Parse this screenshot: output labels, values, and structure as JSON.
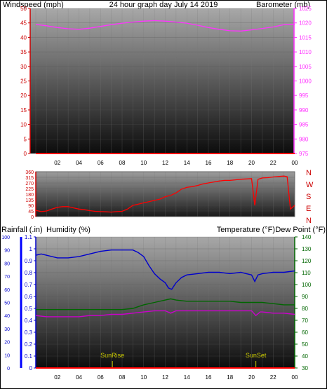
{
  "page": {
    "title": "24 hour graph day   July 14 2019",
    "colors": {
      "wind_axis": "#cc0000",
      "baro": "#ff33ff",
      "title": "#e6e600",
      "humidity": "#0000cc",
      "temperature": "#006600",
      "dewpoint": "#cc00cc",
      "rain_axis": "#0000ff",
      "direction": "#ff0000",
      "sun": "#cccc00"
    }
  },
  "chart_data": [
    {
      "type": "line",
      "ylabel": "Windspeed (mph)",
      "y2label": "Barometer (mb)",
      "ylim": [
        0,
        50
      ],
      "y2lim": [
        975,
        1025
      ],
      "yticks": [
        "0",
        "5",
        "10",
        "15",
        "20",
        "25",
        "30",
        "35",
        "40",
        "45",
        "50"
      ],
      "y2ticks": [
        "975",
        "980",
        "985",
        "990",
        "995",
        "1000",
        "1005",
        "1010",
        "1015",
        "1020",
        "1025"
      ],
      "xticks": [
        "02",
        "04",
        "06",
        "08",
        "10",
        "12",
        "14",
        "16",
        "18",
        "20",
        "22",
        "00"
      ],
      "series": [
        {
          "key": "wind",
          "axis": "y",
          "x": [
            0,
            24
          ],
          "values": [
            0,
            0
          ]
        },
        {
          "key": "barometer",
          "axis": "y2",
          "x": [
            0,
            1,
            2,
            3,
            4,
            5,
            6,
            7,
            8,
            9,
            10,
            11,
            12,
            13,
            14,
            15,
            16,
            17,
            18,
            19,
            20,
            21,
            22,
            23,
            24
          ],
          "values": [
            1019.5,
            1019.0,
            1018.4,
            1018.0,
            1017.8,
            1018.2,
            1018.8,
            1019.4,
            1019.9,
            1020.3,
            1020.6,
            1020.8,
            1020.6,
            1020.3,
            1019.9,
            1019.2,
            1018.4,
            1017.8,
            1017.3,
            1017.2,
            1017.6,
            1018.1,
            1018.6,
            1019.4,
            1019.6
          ]
        }
      ]
    },
    {
      "type": "line",
      "ylim": [
        0,
        360
      ],
      "yticks": [
        "0",
        "45",
        "90",
        "135",
        "180",
        "225",
        "270",
        "315",
        "360"
      ],
      "direction_labels": [
        "N",
        "W",
        "S",
        "E",
        "N"
      ],
      "xticks": [],
      "series": [
        {
          "key": "wind_direction",
          "x": [
            0,
            0.5,
            1,
            1.5,
            2,
            2.5,
            3,
            3.5,
            4,
            4.5,
            5,
            5.5,
            6,
            6.5,
            7,
            7.5,
            8,
            8.5,
            9,
            9.5,
            10,
            10.5,
            11,
            11.5,
            12,
            12.5,
            13,
            13.5,
            14,
            14.5,
            15,
            15.5,
            16,
            16.5,
            17,
            17.5,
            18,
            18.5,
            19,
            19.5,
            20,
            20.3,
            20.6,
            21,
            21.5,
            22,
            22.5,
            23,
            23.3,
            23.6,
            24
          ],
          "values": [
            50,
            40,
            45,
            60,
            75,
            80,
            80,
            70,
            60,
            55,
            48,
            42,
            40,
            38,
            36,
            40,
            42,
            60,
            90,
            100,
            110,
            120,
            130,
            140,
            160,
            170,
            190,
            220,
            235,
            240,
            250,
            262,
            270,
            278,
            285,
            290,
            290,
            295,
            300,
            302,
            305,
            90,
            300,
            310,
            312,
            318,
            322,
            325,
            320,
            60,
            90
          ]
        }
      ]
    },
    {
      "type": "line",
      "ylabel": "Rainfall (.in)",
      "ylabel2": "Humidity (%)",
      "y2label": "Temperature (°F)",
      "y2label2": "Dew Point (°F)",
      "ylim": [
        0,
        1.1
      ],
      "humidity_lim": [
        0,
        100
      ],
      "y2lim": [
        30,
        140
      ],
      "rain_ticks": [
        "0",
        "0.1",
        "0.2",
        "0.3",
        "0.4",
        "0.5",
        "0.6",
        "0.7",
        "0.8",
        "0.9",
        "1",
        "1.1"
      ],
      "humidity_ticks": [
        "0",
        "10",
        "20",
        "30",
        "40",
        "50",
        "60",
        "70",
        "80",
        "90",
        "100"
      ],
      "y2ticks": [
        "30",
        "40",
        "50",
        "60",
        "70",
        "80",
        "90",
        "100",
        "110",
        "120",
        "130",
        "140"
      ],
      "xticks": [
        "02",
        "04",
        "06",
        "08",
        "10",
        "12",
        "14",
        "16",
        "18",
        "20",
        "22",
        "00"
      ],
      "annotations": [
        {
          "label": "SunRise",
          "x": 7.1
        },
        {
          "label": "SunSet",
          "x": 20.4
        }
      ],
      "series": [
        {
          "key": "humidity",
          "axis": "humidity",
          "x": [
            0,
            0.5,
            1,
            2,
            3,
            4,
            5,
            6,
            7,
            8,
            9,
            9.5,
            10,
            10.5,
            11,
            11.5,
            12,
            12.3,
            12.6,
            13,
            13.5,
            14,
            15,
            16,
            17,
            18,
            19,
            19.5,
            20,
            20.3,
            20.6,
            21,
            22,
            23,
            24
          ],
          "values": [
            86,
            87,
            86,
            84,
            84,
            85,
            87,
            89,
            90,
            90,
            90,
            88,
            85,
            78,
            72,
            68,
            65,
            61,
            60,
            65,
            69,
            71,
            72,
            73,
            73,
            72,
            73,
            72,
            71,
            66,
            71,
            72,
            73,
            73,
            74
          ]
        },
        {
          "key": "temperature",
          "axis": "y2",
          "x": [
            0,
            2,
            4,
            6,
            8,
            9,
            10,
            11,
            12,
            12.5,
            13,
            14,
            15,
            16,
            17,
            18,
            19,
            20,
            21,
            22,
            23,
            24
          ],
          "values": [
            79,
            79,
            79,
            79,
            79,
            80,
            83,
            85,
            87,
            88,
            87,
            86,
            86,
            86,
            86,
            86,
            85,
            85,
            85,
            84,
            83,
            83
          ]
        },
        {
          "key": "dewpoint",
          "axis": "y2",
          "x": [
            0,
            1,
            2,
            3,
            4,
            5,
            6,
            7,
            8,
            9,
            10,
            11,
            12,
            12.5,
            13,
            14,
            15,
            16,
            17,
            18,
            19,
            20,
            20.4,
            20.8,
            21,
            22,
            23,
            24
          ],
          "values": [
            74,
            73,
            73,
            73,
            73,
            74,
            74,
            75,
            75,
            76,
            77,
            78,
            78,
            76,
            78,
            78,
            78,
            78,
            78,
            78,
            78,
            78,
            74,
            77,
            77,
            76,
            76,
            75
          ]
        },
        {
          "key": "rainfall",
          "axis": "y",
          "x": [
            0,
            24
          ],
          "values": [
            0,
            0
          ]
        }
      ]
    }
  ]
}
